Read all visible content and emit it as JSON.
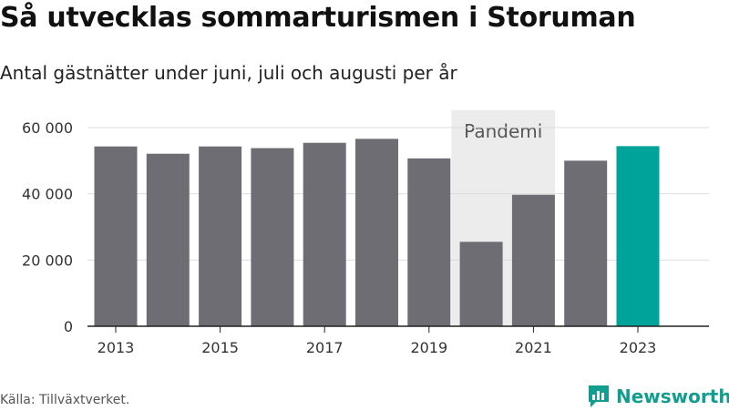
{
  "title": "Så utvecklas sommarturismen i Storuman",
  "subtitle": "Antal gästnätter under juni, juli och augusti per år",
  "source": "Källa: Tillväxtverket.",
  "brand": {
    "name": "Newsworthy",
    "icon": "newsworthy-logo-icon",
    "color": "#129e8f"
  },
  "chart_data": {
    "type": "bar",
    "categories": [
      "2013",
      "2014",
      "2015",
      "2016",
      "2017",
      "2018",
      "2019",
      "2020",
      "2021",
      "2022",
      "2023"
    ],
    "values": [
      54300,
      52100,
      54300,
      53800,
      55400,
      56600,
      50700,
      25500,
      39700,
      50000,
      54400
    ],
    "x_tick_labels": [
      "2013",
      "2015",
      "2017",
      "2019",
      "2021",
      "2023"
    ],
    "y_ticks": [
      0,
      20000,
      40000,
      60000
    ],
    "y_tick_labels": [
      "0",
      "20 000",
      "40 000",
      "60 000"
    ],
    "ylim": [
      0,
      60000
    ],
    "xlabel": "",
    "ylabel": "",
    "grid": true,
    "annotation": {
      "label": "Pandemi",
      "from": "2020",
      "to": "2021"
    },
    "colors": {
      "bar": "#6e6d73",
      "highlight": "#00a39a",
      "highlight_category": "2023",
      "band": "#ececec",
      "grid": "#dddddd"
    }
  }
}
